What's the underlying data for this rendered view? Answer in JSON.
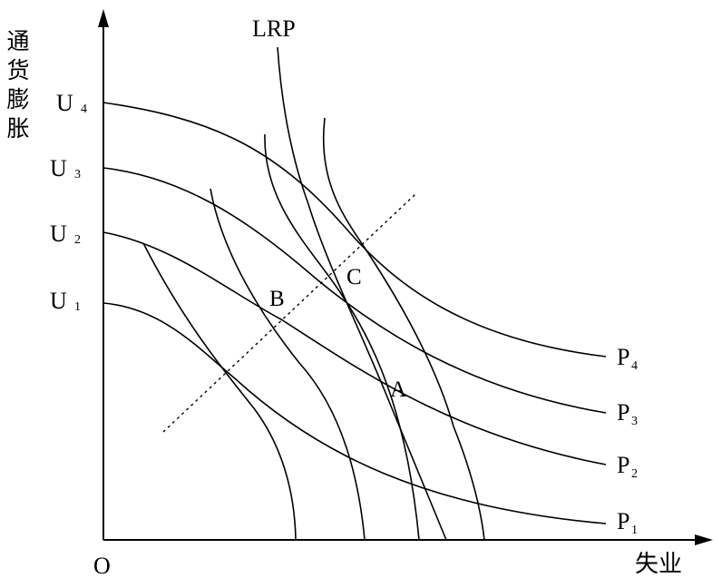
{
  "axes": {
    "y_label": "通货膨胀",
    "x_label": "失业",
    "origin": "O"
  },
  "u_labels": [
    {
      "letter": "U",
      "sub": "4"
    },
    {
      "letter": "U",
      "sub": "3"
    },
    {
      "letter": "U",
      "sub": "2"
    },
    {
      "letter": "U",
      "sub": "1"
    }
  ],
  "p_labels": [
    {
      "letter": "P",
      "sub": "4"
    },
    {
      "letter": "P",
      "sub": "3"
    },
    {
      "letter": "P",
      "sub": "2"
    },
    {
      "letter": "P",
      "sub": "1"
    }
  ],
  "lrp_label": "LRP",
  "points": {
    "a": "A",
    "b": "B",
    "c": "C"
  }
}
